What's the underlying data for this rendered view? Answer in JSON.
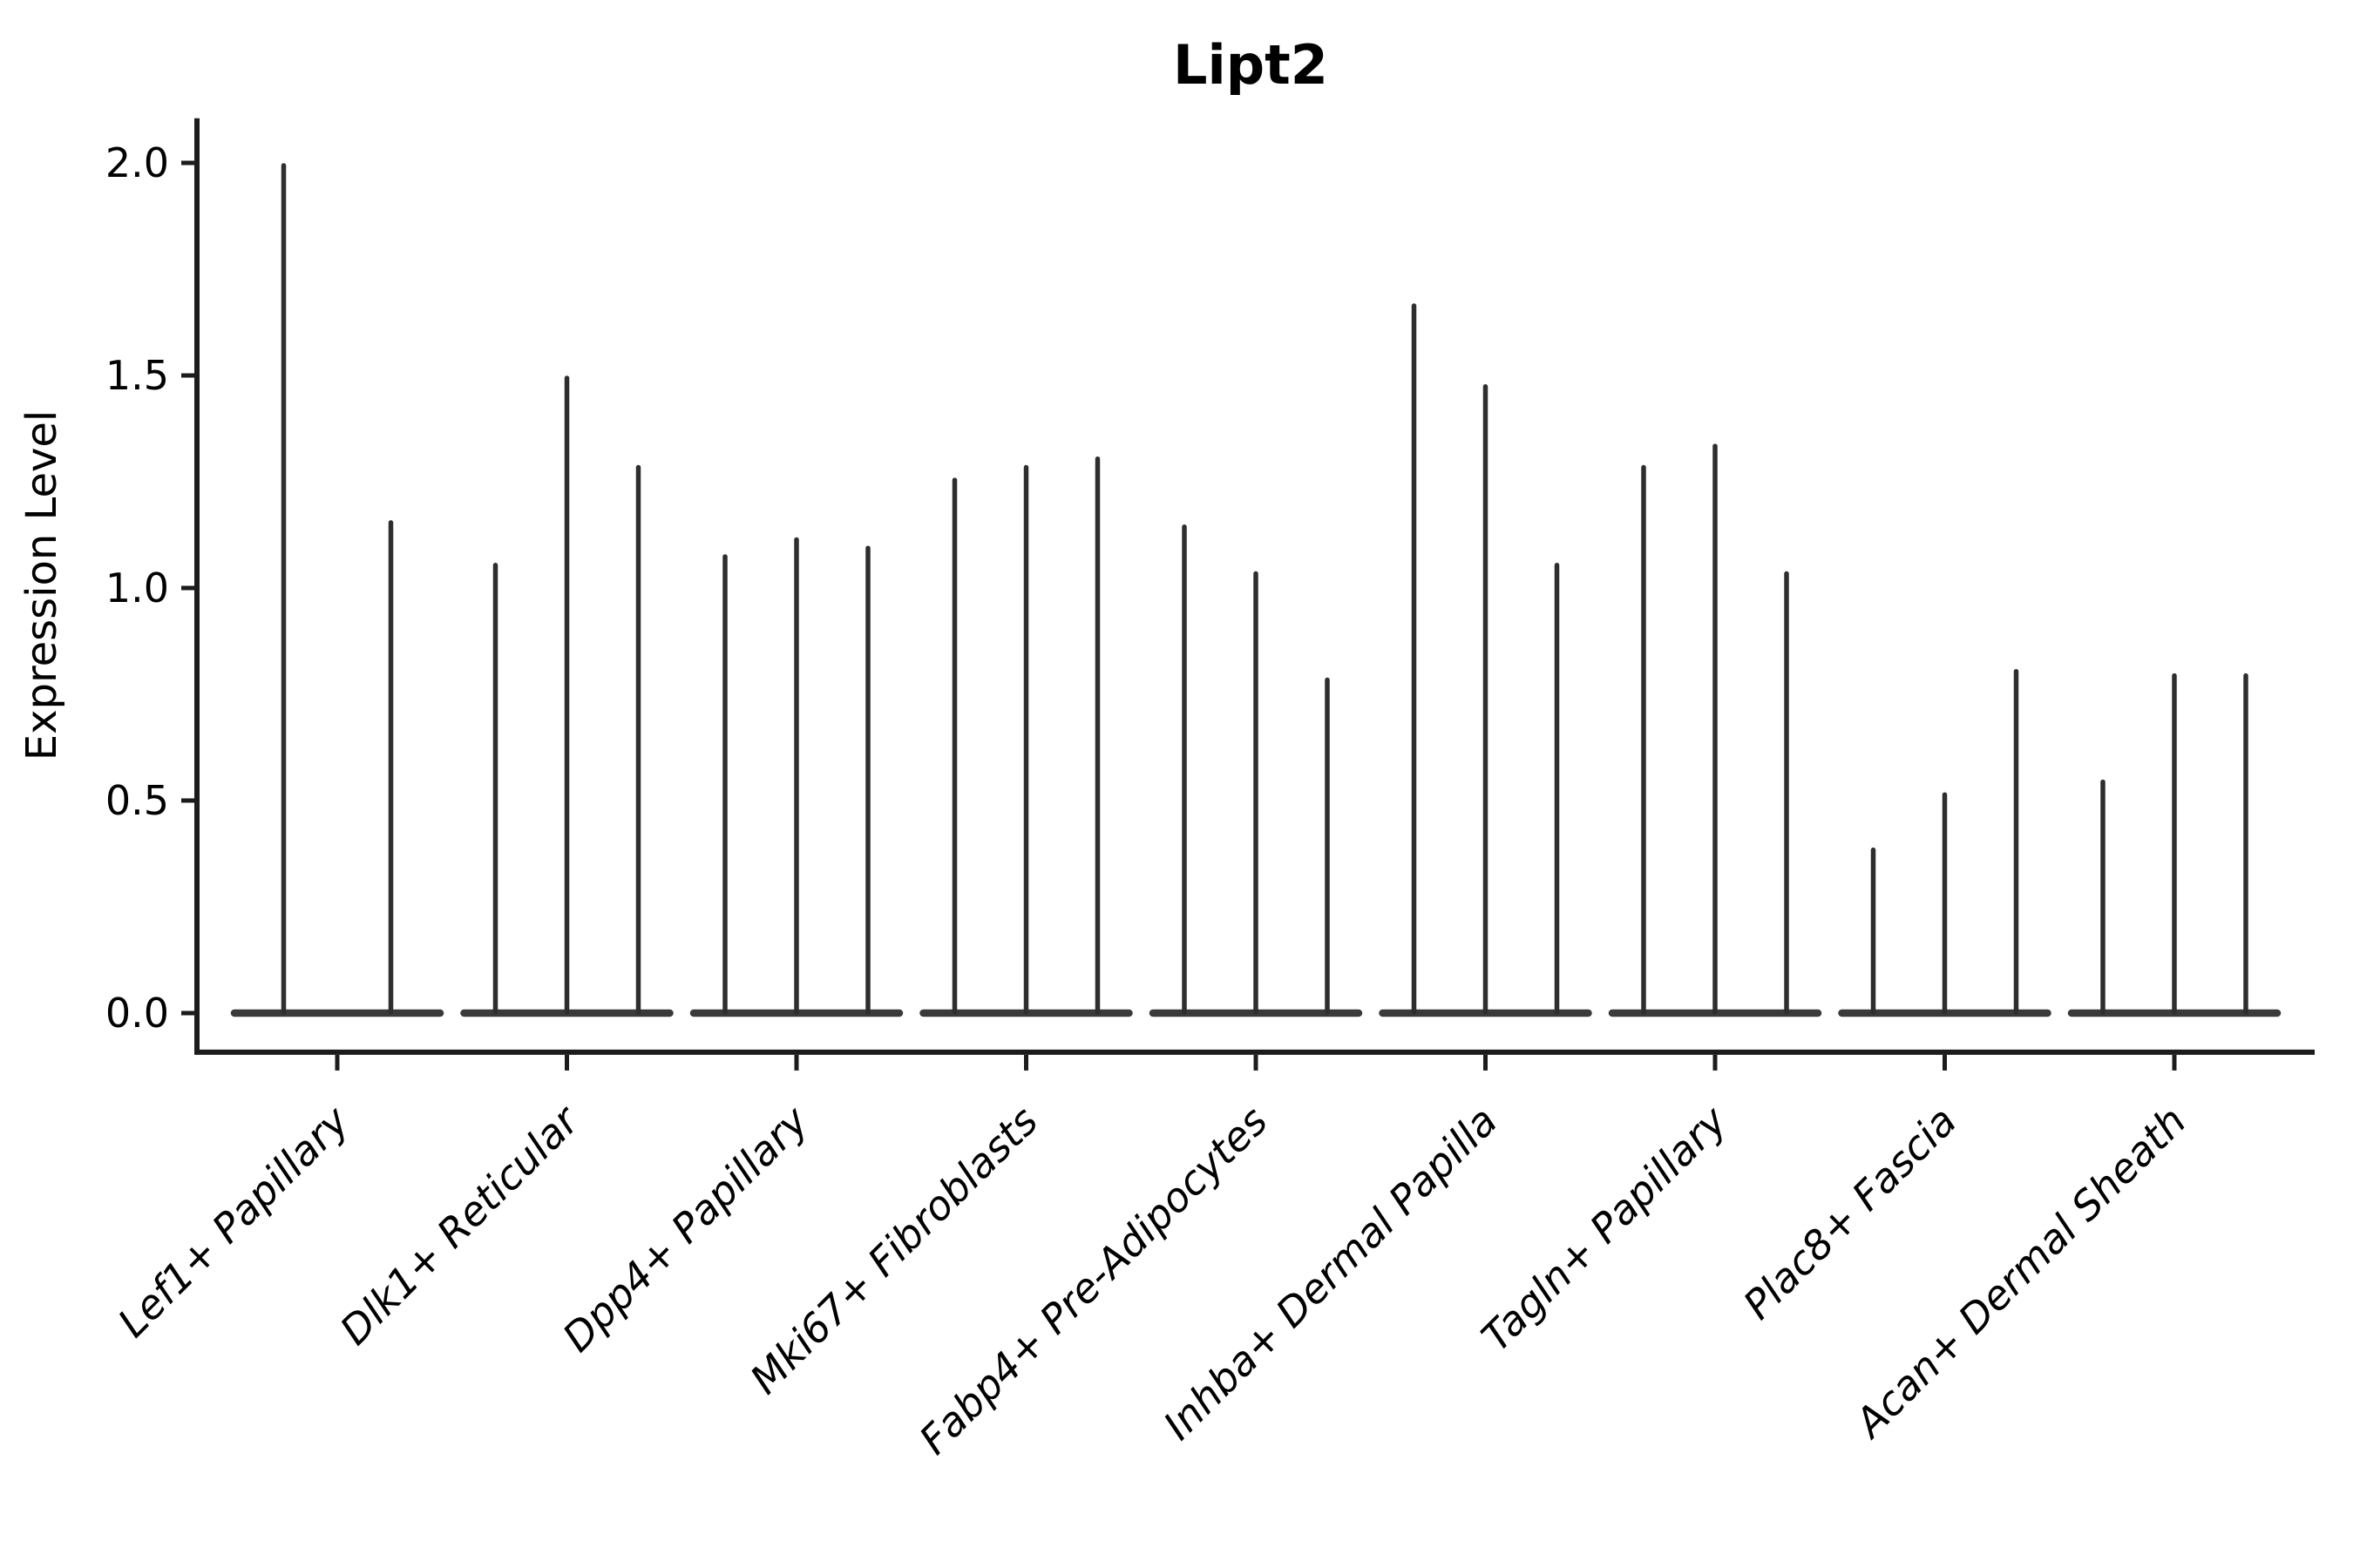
{
  "chart_data": {
    "type": "violin",
    "title": "Lipt2",
    "xlabel": "",
    "ylabel": "Expression Level",
    "ytick_labels": [
      "0.0",
      "0.5",
      "1.0",
      "1.5",
      "2.0"
    ],
    "ytick_values": [
      0,
      0.5,
      1,
      1.5,
      2
    ],
    "ylim": [
      -0.092,
      2.105
    ],
    "x_tick_rotation": 45,
    "grid": false,
    "legend_position": "none",
    "violin_style": "sparse expression: each violin is a flat density base at 0 with a thin spike up to its maximum value",
    "groups": [
      {
        "label": "Lef1+ Papillary",
        "violin_max_values": [
          2.0,
          1.16
        ]
      },
      {
        "label": "Dlk1+ Reticular",
        "violin_max_values": [
          1.06,
          1.5,
          1.29
        ]
      },
      {
        "label": "Dpp4+ Papillary",
        "violin_max_values": [
          1.08,
          1.12,
          1.1
        ]
      },
      {
        "label": "Mki67+ Fibroblasts",
        "violin_max_values": [
          1.26,
          1.29,
          1.31
        ]
      },
      {
        "label": "Fabp4+ Pre-Adipocytes",
        "violin_max_values": [
          1.15,
          1.04,
          0.79
        ]
      },
      {
        "label": "Inhba+ Dermal Papilla",
        "violin_max_values": [
          1.67,
          1.48,
          1.06
        ]
      },
      {
        "label": "Tagln+ Papillary",
        "violin_max_values": [
          1.29,
          1.34,
          1.04
        ]
      },
      {
        "label": "Plac8+ Fascia",
        "violin_max_values": [
          0.39,
          0.52,
          0.81
        ]
      },
      {
        "label": "Acan+ Dermal Sheath",
        "violin_max_values": [
          0.55,
          0.8,
          0.8
        ]
      }
    ],
    "colors": {
      "violin_spike": "#2e2e2e",
      "violin_base": "#3a3a3a",
      "axis": "#1c1c1c",
      "text": "#000000",
      "background": "#ffffff"
    }
  }
}
